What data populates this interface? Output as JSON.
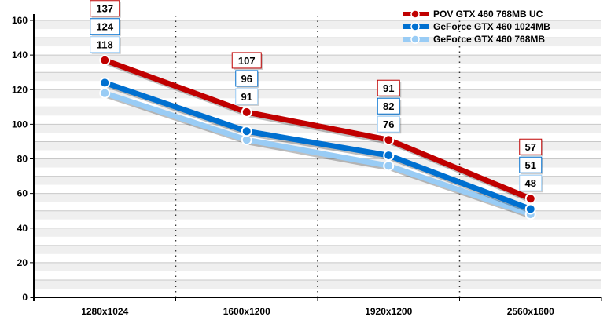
{
  "chart_data": {
    "type": "line",
    "title": "",
    "xlabel": "",
    "ylabel": "",
    "categories": [
      "1280x1024",
      "1600x1200",
      "1920x1200",
      "2560x1600"
    ],
    "ylim": [
      0,
      160
    ],
    "yticks": [
      0,
      20,
      40,
      60,
      80,
      100,
      120,
      140,
      160
    ],
    "grid": true,
    "legend_position": "top-right",
    "series": [
      {
        "name": "POV GTX 460 768MB UC",
        "values": [
          137,
          107,
          91,
          57
        ],
        "color": "#c00000"
      },
      {
        "name": "GeForce GTX 460 1024MB",
        "values": [
          124,
          96,
          82,
          51
        ],
        "color": "#0070d0"
      },
      {
        "name": "GeForce GTX 460 768MB",
        "values": [
          118,
          91,
          76,
          48
        ],
        "color": "#99ccf5"
      }
    ]
  }
}
